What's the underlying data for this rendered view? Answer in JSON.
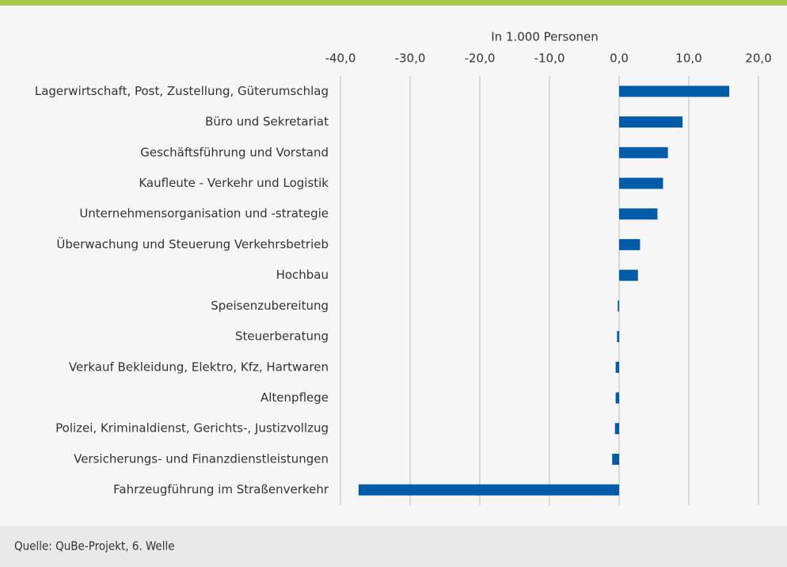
{
  "chart_data": {
    "type": "hbar",
    "xlabel": "In 1.000 Personen",
    "source": "Quelle: QuBe-Projekt, 6. Welle",
    "categories": [
      "Lagerwirtschaft, Post, Zustellung, Güterumschlag",
      "Büro und Sekretariat",
      "Geschäftsführung und Vorstand",
      "Kaufleute - Verkehr und Logistik",
      "Unternehmensorganisation und -strategie",
      "Überwachung und Steuerung Verkehrsbetrieb",
      "Hochbau",
      "Speisenzubereitung",
      "Steuerberatung",
      "Verkauf Bekleidung, Elektro, Kfz, Hartwaren",
      "Altenpflege",
      "Polizei, Kriminaldienst, Gerichts-, Justizvollzug",
      "Versicherungs- und Finanzdienstleistungen",
      "Fahrzeugführung im Straßenverkehr"
    ],
    "values": [
      15.8,
      9.1,
      7.0,
      6.3,
      5.5,
      3.0,
      2.7,
      -0.2,
      -0.3,
      -0.5,
      -0.5,
      -0.6,
      -1.0,
      -37.4
    ],
    "color": "#005ca9",
    "xlim": [
      -40,
      20
    ],
    "xticks": [
      {
        "value": -40,
        "label": "-40,0"
      },
      {
        "value": -30,
        "label": "-30,0"
      },
      {
        "value": -20,
        "label": "-20,0"
      },
      {
        "value": -10,
        "label": "-10,0"
      },
      {
        "value": 0,
        "label": "0,0"
      },
      {
        "value": 10,
        "label": "10,0"
      },
      {
        "value": 20,
        "label": "20,0"
      }
    ],
    "grid": true
  }
}
